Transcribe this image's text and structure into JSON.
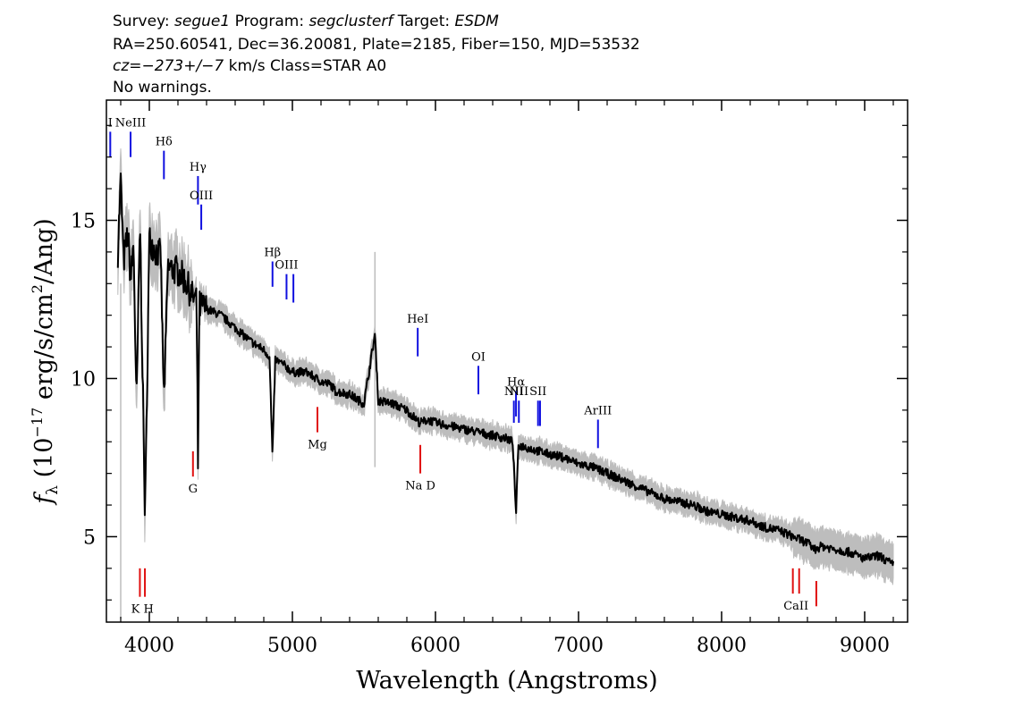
{
  "header": {
    "line1": {
      "survey_label": "Survey: ",
      "survey": "segue1",
      "program_label": " Program: ",
      "program": "segclusterf",
      "target_label": " Target: ",
      "target": "ESDM"
    },
    "line2": "RA=250.60541, Dec=36.20081, Plate=2185, Fiber=150, MJD=53532",
    "line3": {
      "cz": "cz=−273+/−7",
      "rest": " km/s Class=STAR A0"
    },
    "line4": "No warnings."
  },
  "chart_data": {
    "type": "line",
    "xlabel": "Wavelength (Angstroms)",
    "ylabel": "fλ (10⁻¹⁷ erg/s/cm²/Ang)",
    "ylabel_parts": {
      "f": "f",
      "lambda": "λ",
      "pre": " (10",
      "exp1": "−17",
      "mid": " erg/s/cm",
      "exp2": "2",
      "post": "/Ang)"
    },
    "xlim": [
      3700,
      9300
    ],
    "ylim": [
      2.3,
      18.8
    ],
    "xticks": [
      4000,
      5000,
      6000,
      7000,
      8000,
      9000
    ],
    "xtick_labels": [
      "4000",
      "5000",
      "6000",
      "7000",
      "8000",
      "9000"
    ],
    "yticks": [
      5,
      10,
      15
    ],
    "ytick_labels": [
      "5",
      "10",
      "15"
    ],
    "grid": false,
    "colors": {
      "flux": "#000000",
      "flux_error_band": "#bdbdbd",
      "emission_lines": "#1010e0",
      "absorption_lines": "#e01010"
    },
    "series": [
      {
        "name": "flux",
        "x": [
          3780,
          3800,
          3820,
          3850,
          3870,
          3890,
          3910,
          3935,
          3970,
          4000,
          4050,
          4080,
          4102,
          4130,
          4200,
          4250,
          4300,
          4330,
          4340,
          4350,
          4400,
          4500,
          4600,
          4700,
          4800,
          4840,
          4861,
          4880,
          4950,
          5000,
          5100,
          5200,
          5270,
          5300,
          5400,
          5500,
          5577,
          5600,
          5700,
          5800,
          5890,
          5950,
          6000,
          6100,
          6200,
          6300,
          6400,
          6500,
          6540,
          6563,
          6580,
          6650,
          6800,
          6900,
          7000,
          7100,
          7200,
          7300,
          7400,
          7500,
          7600,
          7700,
          7800,
          7900,
          8000,
          8100,
          8200,
          8300,
          8400,
          8500,
          8600,
          8650,
          8700,
          8800,
          8900,
          9000,
          9100,
          9200
        ],
        "y": [
          14.0,
          16.3,
          13.7,
          14.6,
          13.1,
          14.3,
          9.0,
          15.0,
          5.5,
          14.4,
          14.0,
          13.9,
          9.2,
          13.5,
          13.4,
          13.1,
          12.6,
          12.5,
          7.3,
          12.3,
          12.2,
          12.0,
          11.6,
          11.2,
          10.9,
          10.7,
          7.5,
          10.6,
          10.4,
          10.2,
          10.2,
          9.9,
          9.8,
          9.6,
          9.5,
          9.2,
          11.4,
          9.3,
          9.2,
          9.0,
          8.6,
          8.7,
          8.6,
          8.5,
          8.4,
          8.3,
          8.2,
          8.1,
          8.0,
          5.7,
          7.9,
          7.8,
          7.6,
          7.5,
          7.3,
          7.2,
          7.0,
          6.8,
          6.6,
          6.4,
          6.2,
          6.1,
          6.0,
          5.8,
          5.7,
          5.6,
          5.5,
          5.3,
          5.2,
          5.0,
          4.8,
          4.6,
          4.7,
          4.6,
          4.5,
          4.3,
          4.4,
          4.1
        ]
      }
    ],
    "emission_lines": [
      {
        "label": "I",
        "x": 3727,
        "y_top": 17.8,
        "y_bot": 17.0
      },
      {
        "label": "NeIII",
        "x": 3869,
        "y_top": 17.8,
        "y_bot": 17.0
      },
      {
        "label": "Hδ",
        "x": 4102,
        "y_top": 17.2,
        "y_bot": 16.3
      },
      {
        "label": "Hγ",
        "x": 4340,
        "y_top": 16.4,
        "y_bot": 15.5
      },
      {
        "label": "OIII",
        "x": 4363,
        "y_top": 15.5,
        "y_bot": 14.7
      },
      {
        "label": "Hβ",
        "x": 4861,
        "y_top": 13.7,
        "y_bot": 12.9
      },
      {
        "label": "OIII",
        "x": 4959,
        "y_top": 13.3,
        "y_bot": 12.5
      },
      {
        "label": "",
        "x": 5007,
        "y_top": 13.3,
        "y_bot": 12.4
      },
      {
        "label": "HeI",
        "x": 5876,
        "y_top": 11.6,
        "y_bot": 10.7
      },
      {
        "label": "OI",
        "x": 6300,
        "y_top": 10.4,
        "y_bot": 9.5
      },
      {
        "label": "NII",
        "x": 6548,
        "y_top": 9.3,
        "y_bot": 8.6
      },
      {
        "label": "Hα",
        "x": 6563,
        "y_top": 9.6,
        "y_bot": 8.8
      },
      {
        "label": "NII",
        "x": 6583,
        "y_top": 9.3,
        "y_bot": 8.6
      },
      {
        "label": "SII",
        "x": 6717,
        "y_top": 9.3,
        "y_bot": 8.5
      },
      {
        "label": "",
        "x": 6731,
        "y_top": 9.3,
        "y_bot": 8.5
      },
      {
        "label": "ArIII",
        "x": 7136,
        "y_top": 8.7,
        "y_bot": 7.8
      }
    ],
    "absorption_lines": [
      {
        "label": "K H",
        "x": 3934,
        "y_top": 4.0,
        "y_bot": 3.1,
        "x2": 3969
      },
      {
        "label": "G",
        "x": 4305,
        "y_top": 7.7,
        "y_bot": 6.9
      },
      {
        "label": "Mg",
        "x": 5175,
        "y_top": 9.1,
        "y_bot": 8.3
      },
      {
        "label": "Na D",
        "x": 5894,
        "y_top": 7.9,
        "y_bot": 7.0
      },
      {
        "label": "CaII",
        "x": 8498,
        "y_top": 4.0,
        "y_bot": 3.2,
        "x2": 8542
      },
      {
        "label": "",
        "x": 8662,
        "y_top": 3.6,
        "y_bot": 2.8
      }
    ]
  }
}
